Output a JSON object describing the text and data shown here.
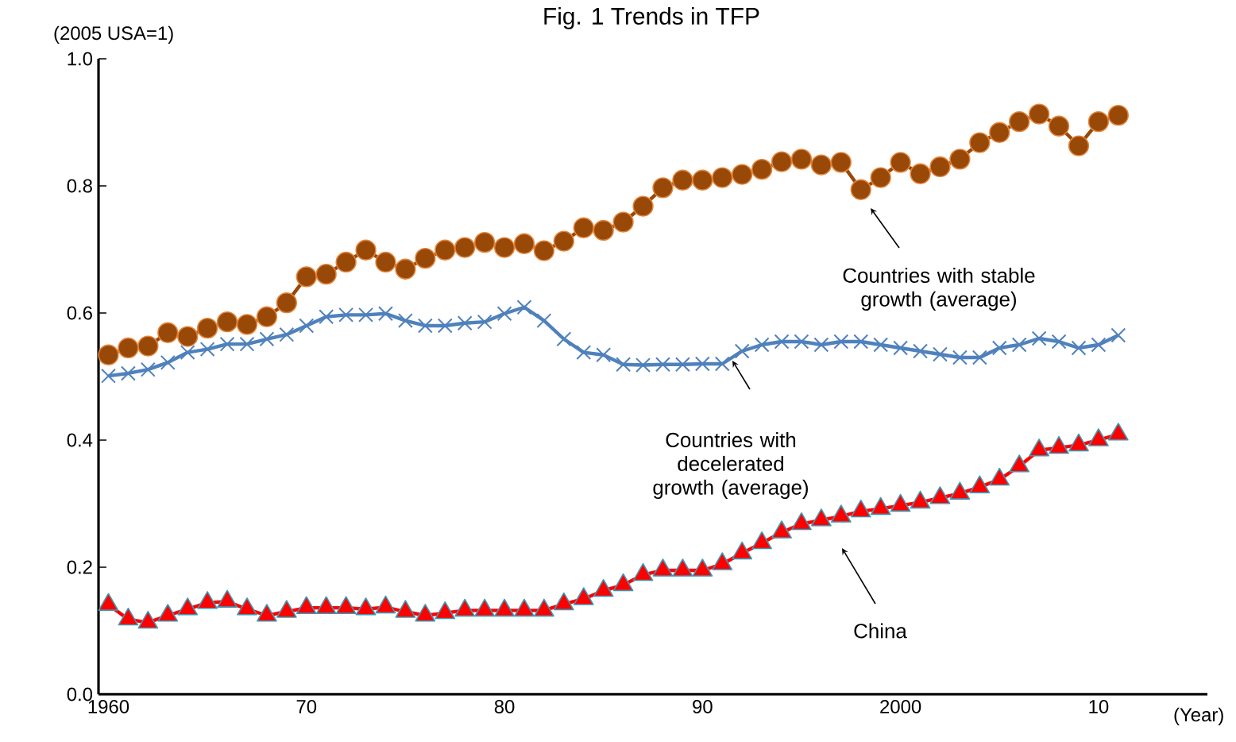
{
  "chart_data": {
    "type": "line",
    "title": "Fig. 1 Trends in TFP",
    "ylabel": "(2005 USA=1)",
    "xlabel": "(Year)",
    "x": [
      1960,
      1961,
      1962,
      1963,
      1964,
      1965,
      1966,
      1967,
      1968,
      1969,
      1970,
      1971,
      1972,
      1973,
      1974,
      1975,
      1976,
      1977,
      1978,
      1979,
      1980,
      1981,
      1982,
      1983,
      1984,
      1985,
      1986,
      1987,
      1988,
      1989,
      1990,
      1991,
      1992,
      1993,
      1994,
      1995,
      1996,
      1997,
      1998,
      1999,
      2000,
      2001,
      2002,
      2003,
      2004,
      2005,
      2006,
      2007,
      2008,
      2009,
      2010,
      2011
    ],
    "series": [
      {
        "color": "#984807",
        "marker": "circle",
        "values": [
          0.534,
          0.545,
          0.548,
          0.569,
          0.563,
          0.576,
          0.586,
          0.582,
          0.594,
          0.616,
          0.657,
          0.661,
          0.68,
          0.699,
          0.68,
          0.669,
          0.686,
          0.699,
          0.703,
          0.711,
          0.703,
          0.709,
          0.698,
          0.713,
          0.734,
          0.73,
          0.743,
          0.768,
          0.797,
          0.809,
          0.809,
          0.813,
          0.818,
          0.826,
          0.838,
          0.842,
          0.833,
          0.837,
          0.794,
          0.813,
          0.837,
          0.819,
          0.83,
          0.842,
          0.868,
          0.884,
          0.901,
          0.913,
          0.894,
          0.863,
          0.901,
          0.911
        ]
      },
      {
        "color": "#4F81BD",
        "marker": "cross",
        "values": [
          0.501,
          0.505,
          0.511,
          0.522,
          0.538,
          0.543,
          0.551,
          0.551,
          0.559,
          0.566,
          0.58,
          0.594,
          0.597,
          0.597,
          0.599,
          0.588,
          0.58,
          0.58,
          0.584,
          0.586,
          0.599,
          0.609,
          0.588,
          0.559,
          0.538,
          0.534,
          0.519,
          0.518,
          0.519,
          0.519,
          0.52,
          0.52,
          0.54,
          0.55,
          0.555,
          0.555,
          0.55,
          0.555,
          0.555,
          0.55,
          0.545,
          0.54,
          0.535,
          0.53,
          0.53,
          0.545,
          0.55,
          0.56,
          0.555,
          0.545,
          0.55,
          0.565
        ]
      },
      {
        "color": "#FF0000",
        "marker": "triangle",
        "values": [
          0.141,
          0.118,
          0.113,
          0.124,
          0.134,
          0.144,
          0.146,
          0.134,
          0.124,
          0.13,
          0.136,
          0.136,
          0.136,
          0.134,
          0.137,
          0.13,
          0.124,
          0.128,
          0.132,
          0.132,
          0.132,
          0.132,
          0.132,
          0.142,
          0.15,
          0.163,
          0.172,
          0.188,
          0.195,
          0.195,
          0.195,
          0.205,
          0.222,
          0.238,
          0.255,
          0.268,
          0.274,
          0.28,
          0.288,
          0.292,
          0.297,
          0.302,
          0.309,
          0.316,
          0.326,
          0.338,
          0.359,
          0.384,
          0.388,
          0.392,
          0.4,
          0.409
        ]
      }
    ],
    "xlim": [
      1959.5,
      2015.5
    ],
    "ylim": [
      0,
      1.0
    ],
    "xticks": [
      1960,
      {
        "value": 1970,
        "label": "70"
      },
      {
        "value": 1980,
        "label": "80"
      },
      {
        "value": 1990,
        "label": "90"
      },
      2000,
      {
        "value": 2010,
        "label": "10"
      }
    ],
    "yticks": [
      {
        "value": 0,
        "label": "0.0"
      },
      {
        "value": 0.2,
        "label": "0.2"
      },
      {
        "value": 0.4,
        "label": "0.4"
      },
      {
        "value": 0.6,
        "label": "0.6"
      },
      {
        "value": 0.8,
        "label": "0.8"
      },
      {
        "value": 1.0,
        "label": "1.0"
      }
    ],
    "grid": false,
    "line_style": "solid",
    "annotations": [
      "Countries with stable growth (average)",
      "Countries with decelerated growth (average)",
      "China"
    ]
  }
}
